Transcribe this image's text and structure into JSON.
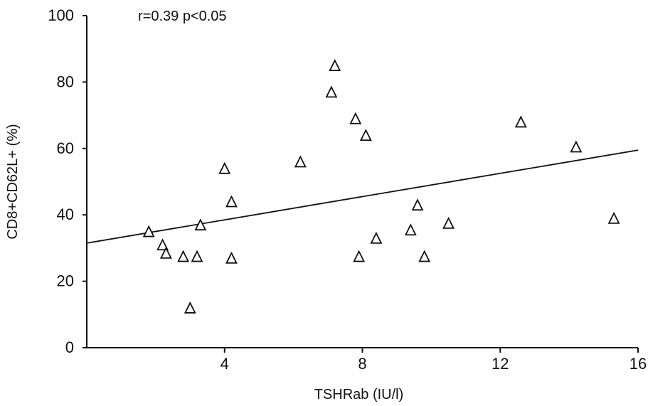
{
  "chart_data": {
    "type": "scatter",
    "xlabel": "TSHRab (IU/l)",
    "ylabel": "CD8+CD62L+ (%)",
    "xlim": [
      0,
      16
    ],
    "ylim": [
      0,
      100
    ],
    "x_ticks": [
      4,
      8,
      12,
      16
    ],
    "y_ticks": [
      0,
      20,
      40,
      60,
      80,
      100
    ],
    "annotation": "r=0.39 p<0.05",
    "marker": "triangle-open",
    "grid": false,
    "series": [
      {
        "points": [
          {
            "x": 1.8,
            "y": 35
          },
          {
            "x": 2.2,
            "y": 31
          },
          {
            "x": 2.3,
            "y": 28.5
          },
          {
            "x": 2.8,
            "y": 27.5
          },
          {
            "x": 3.2,
            "y": 27.5
          },
          {
            "x": 3.3,
            "y": 37
          },
          {
            "x": 3.0,
            "y": 12
          },
          {
            "x": 4.0,
            "y": 54
          },
          {
            "x": 4.2,
            "y": 44
          },
          {
            "x": 4.2,
            "y": 27
          },
          {
            "x": 6.2,
            "y": 56
          },
          {
            "x": 7.1,
            "y": 77
          },
          {
            "x": 7.2,
            "y": 85
          },
          {
            "x": 7.8,
            "y": 69
          },
          {
            "x": 7.9,
            "y": 27.5
          },
          {
            "x": 8.1,
            "y": 64
          },
          {
            "x": 8.4,
            "y": 33
          },
          {
            "x": 9.4,
            "y": 35.5
          },
          {
            "x": 9.6,
            "y": 43
          },
          {
            "x": 9.8,
            "y": 27.5
          },
          {
            "x": 10.5,
            "y": 37.5
          },
          {
            "x": 12.6,
            "y": 68
          },
          {
            "x": 14.2,
            "y": 60.5
          },
          {
            "x": 15.3,
            "y": 39
          }
        ]
      }
    ],
    "regression_line": {
      "x": [
        0,
        16
      ],
      "y": [
        31.5,
        59.5
      ]
    }
  }
}
